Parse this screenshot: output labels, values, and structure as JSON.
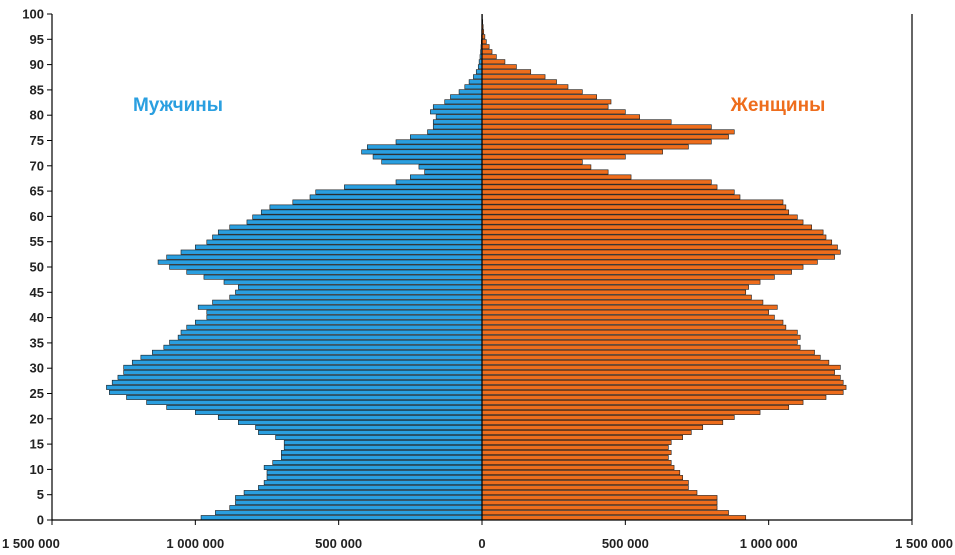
{
  "chart_data": {
    "type": "bar",
    "orientation": "horizontal",
    "subtype": "population-pyramid",
    "title": "",
    "xlabel": "",
    "ylabel": "",
    "xlim": [
      -1500000,
      1500000
    ],
    "ylim": [
      0,
      100
    ],
    "grid": false,
    "x_tick_labels": [
      "1 500 000",
      "1 000 000",
      "500 000",
      "0",
      "500 000",
      "1 000 000",
      "1 500 000"
    ],
    "y_tick_labels": [
      "0",
      "5",
      "10",
      "15",
      "20",
      "25",
      "30",
      "35",
      "40",
      "45",
      "50",
      "55",
      "60",
      "65",
      "70",
      "75",
      "80",
      "85",
      "90",
      "95",
      "100"
    ],
    "ages": [
      0,
      1,
      2,
      3,
      4,
      5,
      6,
      7,
      8,
      9,
      10,
      11,
      12,
      13,
      14,
      15,
      16,
      17,
      18,
      19,
      20,
      21,
      22,
      23,
      24,
      25,
      26,
      27,
      28,
      29,
      30,
      31,
      32,
      33,
      34,
      35,
      36,
      37,
      38,
      39,
      40,
      41,
      42,
      43,
      44,
      45,
      46,
      47,
      48,
      49,
      50,
      51,
      52,
      53,
      54,
      55,
      56,
      57,
      58,
      59,
      60,
      61,
      62,
      63,
      64,
      65,
      66,
      67,
      68,
      69,
      70,
      71,
      72,
      73,
      74,
      75,
      76,
      77,
      78,
      79,
      80,
      81,
      82,
      83,
      84,
      85,
      86,
      87,
      88,
      89,
      90,
      91,
      92,
      93,
      94,
      95,
      96,
      97,
      98,
      99,
      100
    ],
    "series": [
      {
        "name": "Мужчины",
        "color": "#2a9fe0",
        "side": "left",
        "values": [
          980000,
          930000,
          880000,
          860000,
          860000,
          830000,
          780000,
          760000,
          750000,
          750000,
          760000,
          730000,
          700000,
          700000,
          690000,
          690000,
          720000,
          780000,
          790000,
          850000,
          920000,
          1000000,
          1100000,
          1170000,
          1240000,
          1300000,
          1310000,
          1290000,
          1270000,
          1250000,
          1250000,
          1220000,
          1190000,
          1150000,
          1110000,
          1090000,
          1060000,
          1050000,
          1030000,
          1000000,
          960000,
          960000,
          990000,
          940000,
          880000,
          860000,
          850000,
          900000,
          970000,
          1030000,
          1090000,
          1130000,
          1100000,
          1050000,
          1000000,
          960000,
          940000,
          920000,
          880000,
          820000,
          800000,
          770000,
          740000,
          660000,
          600000,
          580000,
          480000,
          300000,
          250000,
          200000,
          220000,
          350000,
          380000,
          420000,
          400000,
          300000,
          250000,
          190000,
          170000,
          170000,
          160000,
          180000,
          170000,
          130000,
          110000,
          80000,
          60000,
          45000,
          30000,
          20000,
          13000,
          10000,
          7000,
          5000,
          3500,
          2500,
          1800,
          1200,
          800,
          500,
          300
        ]
      },
      {
        "name": "Женщины",
        "color": "#ee6d1c",
        "side": "right",
        "values": [
          920000,
          860000,
          820000,
          820000,
          820000,
          750000,
          720000,
          720000,
          700000,
          690000,
          670000,
          660000,
          650000,
          660000,
          650000,
          660000,
          700000,
          730000,
          770000,
          840000,
          880000,
          970000,
          1070000,
          1120000,
          1200000,
          1260000,
          1270000,
          1260000,
          1250000,
          1230000,
          1250000,
          1210000,
          1180000,
          1160000,
          1110000,
          1100000,
          1110000,
          1100000,
          1060000,
          1050000,
          1020000,
          1000000,
          1030000,
          980000,
          940000,
          920000,
          930000,
          970000,
          1020000,
          1080000,
          1120000,
          1170000,
          1230000,
          1250000,
          1240000,
          1220000,
          1200000,
          1190000,
          1150000,
          1120000,
          1100000,
          1070000,
          1060000,
          1050000,
          900000,
          880000,
          820000,
          800000,
          520000,
          440000,
          380000,
          350000,
          500000,
          630000,
          720000,
          800000,
          860000,
          880000,
          800000,
          660000,
          550000,
          500000,
          440000,
          450000,
          400000,
          350000,
          300000,
          260000,
          220000,
          170000,
          120000,
          80000,
          50000,
          35000,
          25000,
          15000,
          10000,
          6000,
          4000,
          2500,
          1500
        ]
      }
    ]
  },
  "legend": {
    "men_label": "Мужчины",
    "women_label": "Женщины"
  },
  "colors": {
    "axis": "#000000",
    "bar_stroke": "#1a1a1a",
    "men": "#2a9fe0",
    "women": "#ee6d1c",
    "men_text": "#2a9fe0",
    "women_text": "#ee6d1c"
  }
}
